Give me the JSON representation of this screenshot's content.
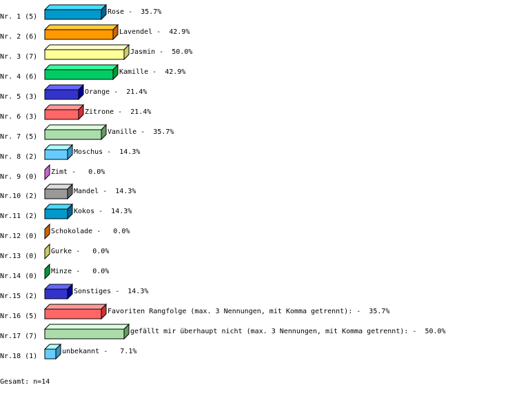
{
  "chart_data": {
    "type": "bar",
    "orientation": "horizontal",
    "style": "3d",
    "grid": false,
    "unit": "%",
    "categories": [
      "Nr. 1 (5)",
      "Nr. 2 (6)",
      "Nr. 3 (7)",
      "Nr. 4 (6)",
      "Nr. 5 (3)",
      "Nr. 6 (3)",
      "Nr. 7 (5)",
      "Nr. 8 (2)",
      "Nr. 9 (0)",
      "Nr.10 (2)",
      "Nr.11 (2)",
      "Nr.12 (0)",
      "Nr.13 (0)",
      "Nr.14 (0)",
      "Nr.15 (2)",
      "Nr.16 (5)",
      "Nr.17 (7)",
      "Nr.18 (1)"
    ],
    "labels": [
      "Rose",
      "Lavendel",
      "Jasmin",
      "Kamille",
      "Orange",
      "Zitrone",
      "Vanille",
      "Moschus",
      "Zimt",
      "Mandel",
      "Kokos",
      "Schokolade",
      "Gurke",
      "Minze",
      "Sonstiges",
      "Favoriten Rangfolge (max. 3 Nennungen, mit Komma getrennt):",
      "gefällt mir überhaupt nicht (max. 3 Nennungen, mit Komma getrennt):",
      "unbekannt"
    ],
    "counts": [
      5,
      6,
      7,
      6,
      3,
      3,
      5,
      2,
      0,
      2,
      2,
      0,
      0,
      0,
      2,
      5,
      7,
      1
    ],
    "values": [
      35.7,
      42.9,
      50.0,
      42.9,
      21.4,
      21.4,
      35.7,
      14.3,
      0.0,
      14.3,
      14.3,
      0.0,
      0.0,
      0.0,
      14.3,
      35.7,
      50.0,
      7.1
    ],
    "value_labels": [
      "Rose -  35.7%",
      "Lavendel -  42.9%",
      "Jasmin -  50.0%",
      "Kamille -  42.9%",
      "Orange -  21.4%",
      "Zitrone -  21.4%",
      "Vanille -  35.7%",
      "Moschus -  14.3%",
      "Zimt -   0.0%",
      "Mandel -  14.3%",
      "Kokos -  14.3%",
      "Schokolade -   0.0%",
      "Gurke -   0.0%",
      "Minze -   0.0%",
      "Sonstiges -  14.3%",
      "Favoriten Rangfolge (max. 3 Nennungen, mit Komma getrennt): -  35.7%",
      "gefällt mir überhaupt nicht (max. 3 Nennungen, mit Komma getrennt): -  50.0%",
      "unbekannt -   7.1%"
    ],
    "colors": [
      {
        "front": "#0099cc",
        "top": "#44ddff",
        "side": "#006699"
      },
      {
        "front": "#ff9900",
        "top": "#ffcc33",
        "side": "#cc6600"
      },
      {
        "front": "#ffff99",
        "top": "#ffffcc",
        "side": "#cccc66"
      },
      {
        "front": "#00cc66",
        "top": "#33ff99",
        "side": "#009933"
      },
      {
        "front": "#3333cc",
        "top": "#6666ff",
        "side": "#000099"
      },
      {
        "front": "#ff6666",
        "top": "#ff9999",
        "side": "#cc3333"
      },
      {
        "front": "#aaddaa",
        "top": "#ddffdd",
        "side": "#669966"
      },
      {
        "front": "#66ccff",
        "top": "#aaffff",
        "side": "#3399cc"
      },
      {
        "front": "#cc66cc",
        "top": "#ee99ee",
        "side": "#cc66cc"
      },
      {
        "front": "#999999",
        "top": "#dddddd",
        "side": "#666666"
      },
      {
        "front": "#0099cc",
        "top": "#44ddff",
        "side": "#006699"
      },
      {
        "front": "#cc6600",
        "top": "#ff9933",
        "side": "#cc6600"
      },
      {
        "front": "#cccc66",
        "top": "#eeee99",
        "side": "#cccc66"
      },
      {
        "front": "#009933",
        "top": "#33cc66",
        "side": "#009933"
      },
      {
        "front": "#3333cc",
        "top": "#6666ff",
        "side": "#000099"
      },
      {
        "front": "#ff6666",
        "top": "#ff9999",
        "side": "#cc3333"
      },
      {
        "front": "#aaddaa",
        "top": "#ddffdd",
        "side": "#669966"
      },
      {
        "front": "#66ccff",
        "top": "#aaffff",
        "side": "#3399cc"
      }
    ]
  },
  "footer": {
    "total": "Gesamt: n=14"
  }
}
